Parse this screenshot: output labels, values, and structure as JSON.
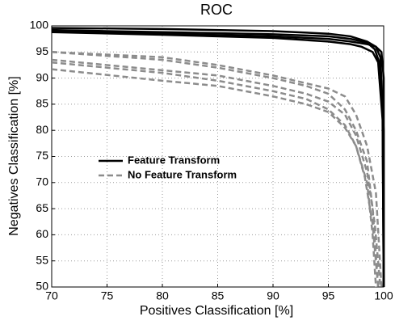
{
  "chart_data": {
    "type": "line",
    "title": "ROC",
    "x_label": "Positives Classification [%]",
    "y_label": "Negatives Classification [%]",
    "xlim": [
      70,
      100
    ],
    "ylim": [
      50,
      100
    ],
    "xticks": [
      70,
      75,
      80,
      85,
      90,
      95,
      100
    ],
    "yticks": [
      50,
      55,
      60,
      65,
      70,
      75,
      80,
      85,
      90,
      95,
      100
    ],
    "grid": true,
    "series": [
      {
        "name": "Feature Transform",
        "color": "#000000",
        "dashed": false,
        "lines": [
          {
            "x": [
              70,
              80,
              90,
              95,
              97,
              98.5,
              99.3,
              99.7,
              100,
              100
            ],
            "values": [
              99.6,
              99.4,
              99,
              98.5,
              98,
              97,
              96,
              94,
              80,
              50
            ]
          },
          {
            "x": [
              70,
              80,
              90,
              95,
              97,
              98.5,
              99.2,
              99.6,
              99.9,
              100
            ],
            "values": [
              99.2,
              98.8,
              98.4,
              98,
              97.5,
              96.8,
              95.5,
              93,
              85,
              50
            ]
          },
          {
            "x": [
              70,
              80,
              90,
              95,
              97,
              98.5,
              99.3,
              99.8,
              100,
              100
            ],
            "values": [
              99,
              98.5,
              98,
              97.5,
              97,
              96.5,
              96,
              95,
              90,
              50
            ]
          },
          {
            "x": [
              70,
              80,
              90,
              95,
              97,
              98,
              99,
              99.5,
              99.9,
              100
            ],
            "values": [
              98.8,
              98.3,
              97.7,
              97,
              96.5,
              96,
              95,
              93,
              82,
              50
            ]
          }
        ]
      },
      {
        "name": "No Feature Transform",
        "color": "#8c8c8c",
        "dashed": true,
        "lines": [
          {
            "x": [
              70,
              80,
              85,
              90,
              93,
              95,
              96.5,
              97.5,
              98.5,
              99,
              99.5
            ],
            "values": [
              95,
              93.5,
              92,
              90,
              88.5,
              87,
              84,
              80,
              74,
              65,
              50
            ]
          },
          {
            "x": [
              70,
              80,
              85,
              90,
              93,
              95,
              96.5,
              97.5,
              98.5,
              99.2,
              99.7
            ],
            "values": [
              93.5,
              91.5,
              90.5,
              88.5,
              87,
              85.5,
              83,
              79,
              72,
              62,
              50
            ]
          },
          {
            "x": [
              70,
              80,
              85,
              90,
              93,
              95,
              96.5,
              97.5,
              98.5,
              99,
              99.3
            ],
            "values": [
              93,
              91,
              89.5,
              87.5,
              86,
              84,
              81,
              77,
              70,
              60,
              50
            ]
          },
          {
            "x": [
              70,
              80,
              85,
              90,
              93,
              95,
              96.5,
              97.5,
              98.3,
              99,
              99.5
            ],
            "values": [
              91.7,
              89.5,
              88.5,
              86.5,
              85,
              83.5,
              80.5,
              77,
              71,
              62,
              50
            ]
          },
          {
            "x": [
              70,
              80,
              85,
              90,
              93,
              95,
              96.5,
              97.5,
              98.5,
              99.3,
              99.8
            ],
            "values": [
              95,
              94,
              92.5,
              90.5,
              89,
              88,
              86.5,
              83,
              77,
              68,
              50
            ]
          }
        ]
      }
    ]
  }
}
